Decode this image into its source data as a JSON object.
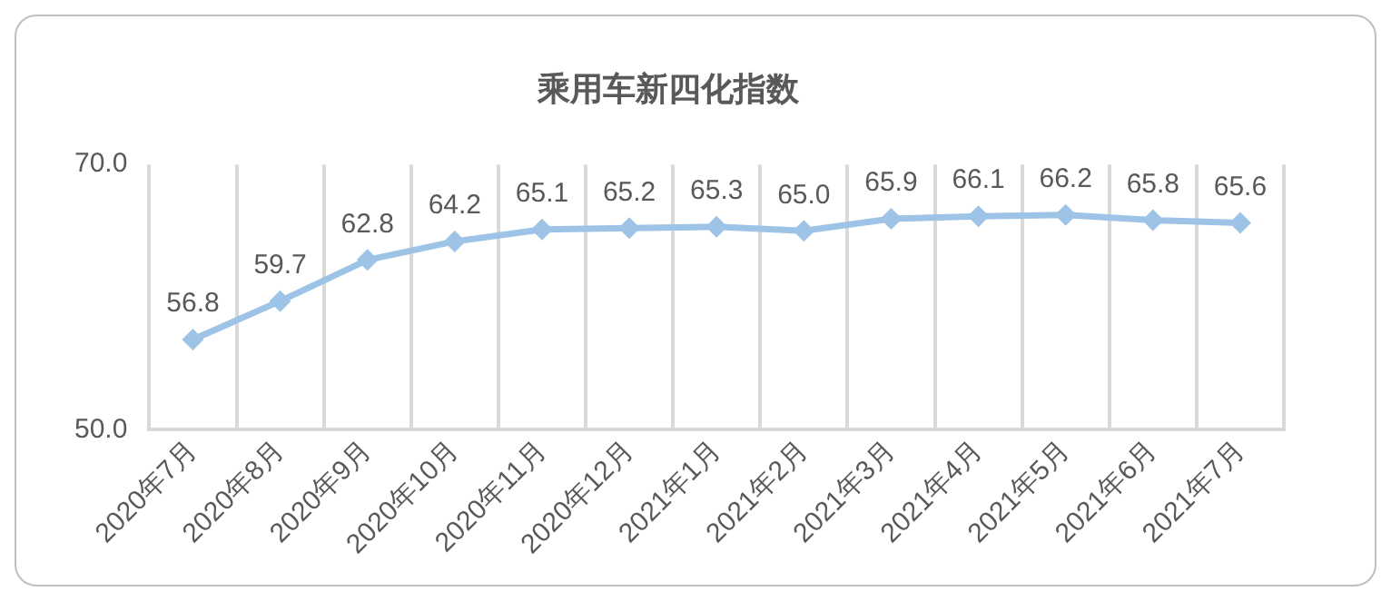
{
  "chart_data": {
    "type": "line",
    "title": "乘用车新四化指数",
    "categories": [
      "2020年7月",
      "2020年8月",
      "2020年9月",
      "2020年10月",
      "2020年11月",
      "2020年12月",
      "2021年1月",
      "2021年2月",
      "2021年3月",
      "2021年4月",
      "2021年5月",
      "2021年6月",
      "2021年7月"
    ],
    "series": [
      {
        "color": "#9dc3e6",
        "values": [
          56.8,
          59.7,
          62.8,
          64.2,
          65.1,
          65.2,
          65.3,
          65.0,
          65.9,
          66.1,
          66.2,
          65.8,
          65.6
        ],
        "value_labels": [
          "56.8",
          "59.7",
          "62.8",
          "64.2",
          "65.1",
          "65.2",
          "65.3",
          "65.0",
          "65.9",
          "66.1",
          "66.2",
          "65.8",
          "65.6"
        ]
      }
    ],
    "ylim": [
      50,
      70
    ],
    "yticks": [
      {
        "value": 50,
        "label": "50.0"
      },
      {
        "value": 70,
        "label": "70.0"
      }
    ],
    "grid": "x",
    "marker": "diamond",
    "line_style": "solid",
    "legend": false
  }
}
